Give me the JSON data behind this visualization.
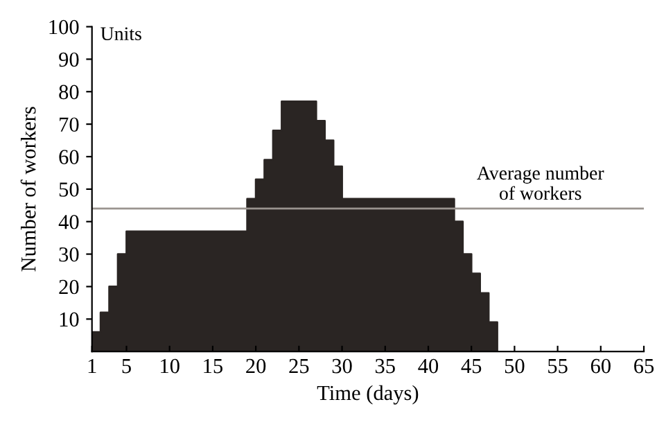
{
  "chart_data": {
    "type": "area",
    "xlabel": "Time (days)",
    "ylabel": "Number of workers",
    "annotations": [
      "Units"
    ],
    "x": [
      1,
      2,
      2,
      3,
      3,
      4,
      4,
      5,
      5,
      19,
      19,
      20,
      20,
      21,
      21,
      22,
      22,
      23,
      23,
      27,
      27,
      28,
      28,
      29,
      29,
      30,
      30,
      43,
      43,
      44,
      44,
      45,
      45,
      46,
      46,
      47,
      47,
      48,
      48
    ],
    "values": [
      6,
      6,
      12,
      12,
      20,
      20,
      30,
      30,
      37,
      37,
      47,
      47,
      53,
      53,
      59,
      59,
      68,
      68,
      77,
      77,
      71,
      71,
      65,
      65,
      57,
      57,
      47,
      47,
      40,
      40,
      30,
      30,
      24,
      24,
      18,
      18,
      9,
      9,
      0
    ],
    "color": "#2a2523",
    "xlim": [
      1,
      65
    ],
    "xticks": [
      1,
      5,
      10,
      15,
      20,
      25,
      30,
      35,
      40,
      45,
      50,
      55,
      60,
      65
    ],
    "ylim": [
      0,
      100
    ],
    "yticks": [
      10,
      20,
      30,
      40,
      50,
      60,
      70,
      80,
      90,
      100
    ],
    "ref_lines": [
      {
        "axis": "y",
        "value": 44,
        "label": "Average number\nof workers",
        "color": "#9a948f"
      }
    ],
    "grid": false,
    "legend": false
  }
}
